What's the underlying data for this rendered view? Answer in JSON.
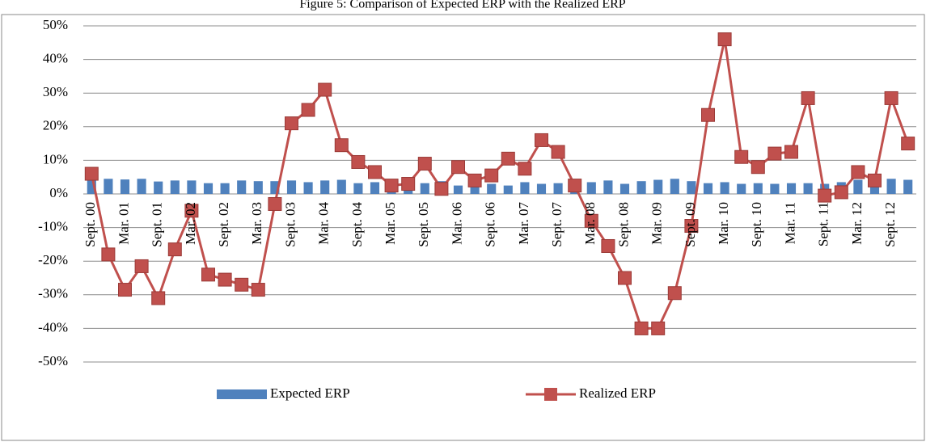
{
  "chart_data": {
    "type": "combo",
    "title": "Figure 5: Comparison of Expected ERP with the Realized ERP",
    "categories": [
      "Sept. 00",
      null,
      "Mar. 01",
      null,
      "Sept. 01",
      null,
      "Mar. 02",
      null,
      "Sept. 02",
      null,
      "Mar. 03",
      null,
      "Sept. 03",
      null,
      "Mar. 04",
      null,
      "Sept. 04",
      null,
      "Mar. 05",
      null,
      "Sept. 05",
      null,
      "Mar. 06",
      null,
      "Sept. 06",
      null,
      "Mar. 07",
      null,
      "Sept. 07",
      null,
      "Mar. 08",
      null,
      "Sept. 08",
      null,
      "Mar. 09",
      null,
      "Sept. 09",
      null,
      "Mar. 10",
      null,
      "Sept. 10",
      null,
      "Mar. 11",
      null,
      "Sept. 11",
      null,
      "Mar. 12",
      null,
      "Sept. 12",
      null
    ],
    "series": [
      {
        "name": "Expected ERP",
        "type": "bar",
        "color": "#4f81bd",
        "values": [
          4.5,
          4.5,
          4.3,
          4.5,
          3.7,
          4,
          4,
          3.2,
          3.2,
          4,
          3.8,
          3.8,
          4,
          3.5,
          4,
          4.2,
          3.2,
          3.5,
          3,
          3,
          3.2,
          3.8,
          2.5,
          3.5,
          3,
          2.5,
          3.5,
          3,
          3.2,
          3,
          3.5,
          4,
          3,
          3.8,
          4.2,
          4.5,
          3.8,
          3.2,
          3.5,
          3,
          3.2,
          3,
          3.2,
          3.2,
          3,
          3.5,
          4.2,
          4,
          4.5,
          4.2
        ]
      },
      {
        "name": "Realized ERP",
        "type": "line",
        "color": "#c0504d",
        "values": [
          6,
          -18,
          -28.5,
          -21.5,
          -31,
          -16.5,
          -5,
          -24,
          -25.5,
          -27,
          -28.5,
          -3,
          21,
          25,
          31,
          14.5,
          9.5,
          6.5,
          2.5,
          3,
          9,
          1.5,
          8,
          4,
          5.5,
          10.5,
          7.5,
          16,
          12.5,
          2.5,
          -8,
          -15.5,
          -25,
          -40,
          -40,
          -29.5,
          -9.5,
          23.5,
          46,
          11,
          8,
          12,
          12.5,
          28.5,
          -0.5,
          0.5,
          6.5,
          4,
          28.5,
          15
        ]
      }
    ],
    "ylim": [
      -50,
      50
    ],
    "yticks": [
      {
        "value": -50,
        "label": "-50%"
      },
      {
        "value": -40,
        "label": "-40%"
      },
      {
        "value": -30,
        "label": "-30%"
      },
      {
        "value": -20,
        "label": "-20%"
      },
      {
        "value": -10,
        "label": "-10%"
      },
      {
        "value": 0,
        "label": "0%"
      },
      {
        "value": 10,
        "label": "10%"
      },
      {
        "value": 20,
        "label": "20%"
      },
      {
        "value": 30,
        "label": "30%"
      },
      {
        "value": 40,
        "label": "40%"
      },
      {
        "value": 50,
        "label": "50%"
      }
    ],
    "grid": true,
    "legend": "bottom"
  }
}
